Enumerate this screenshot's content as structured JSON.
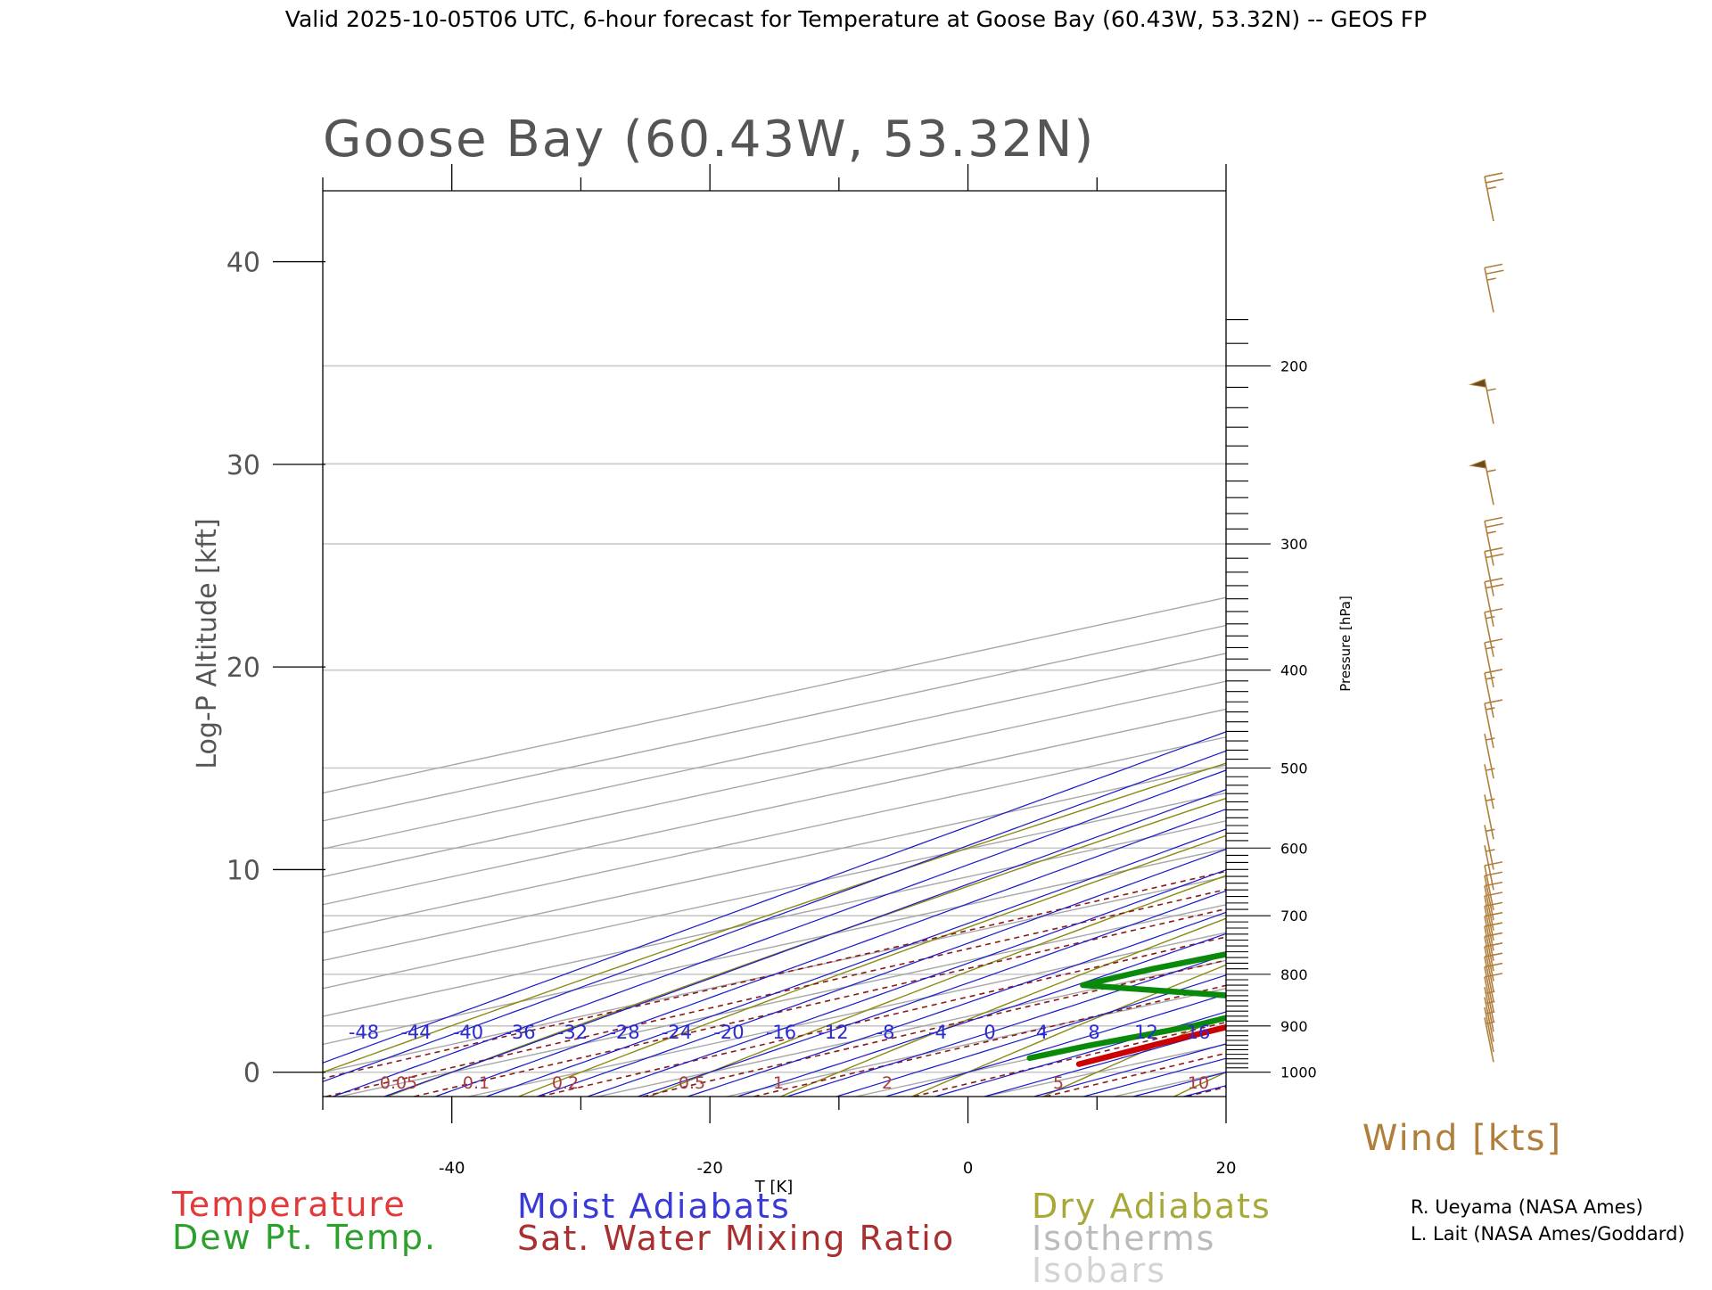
{
  "header": "Valid 2025-10-05T06 UTC, 6-hour forecast for Temperature at Goose Bay (60.43W, 53.32N) -- GEOS FP",
  "chart_data": {
    "type": "line",
    "chart_kind": "skew-T log-P diagram",
    "title": "Goose Bay (60.43W, 53.32N)",
    "xlabel": "T [K]",
    "ylabel": "Log-P Altitude [kft]",
    "y2label": "Pressure [hPa]",
    "xlim": [
      -50,
      20
    ],
    "ylim": [
      -1.2,
      43.5
    ],
    "x_ticks": [
      -40,
      -20,
      0,
      20
    ],
    "y_ticks": [
      0,
      10,
      20,
      30,
      40
    ],
    "pressure_ticks": [
      200,
      300,
      400,
      500,
      600,
      700,
      800,
      900,
      1000
    ],
    "moist_adiabat_labels": [
      "-48",
      "-44",
      "-40",
      "-36",
      "-32",
      "-28",
      "-24",
      "-20",
      "-16",
      "-12",
      "-8",
      "-4",
      "0",
      "4",
      "8",
      "12",
      "16"
    ],
    "mixing_ratio_labels": [
      "0.05",
      "0.1",
      "0.2",
      "0.5",
      "1",
      "2",
      "5",
      "10"
    ],
    "wind_label": "Wind [kts]",
    "grid": true,
    "series": [
      {
        "name": "Temperature",
        "color": "#cc0000",
        "points": [
          [
            5.7,
            0.4
          ],
          [
            4.6,
            1.4
          ],
          [
            3.9,
            2.2
          ],
          [
            4.0,
            3.0
          ],
          [
            5.2,
            3.6
          ],
          [
            8.1,
            4.4
          ],
          [
            9.1,
            6.4
          ],
          [
            9.6,
            8.8
          ],
          [
            9.9,
            10.2
          ],
          [
            9.6,
            11.8
          ],
          [
            9.0,
            12.7
          ],
          [
            7.5,
            14.5
          ],
          [
            6.0,
            16.3
          ],
          [
            4.6,
            17.8
          ],
          [
            3.6,
            18.9
          ],
          [
            2.6,
            20.3
          ],
          [
            1.5,
            21.8
          ],
          [
            0.5,
            23.8
          ],
          [
            -0.6,
            26.0
          ],
          [
            -1.5,
            27.8
          ],
          [
            -1.5,
            30.6
          ],
          [
            -1.5,
            31.6
          ],
          [
            0.6,
            33.7
          ],
          [
            3.5,
            36.1
          ],
          [
            6.5,
            38.6
          ],
          [
            10.6,
            41.7
          ],
          [
            13.1,
            43.3
          ]
        ]
      },
      {
        "name": "Dew Pt. Temp.",
        "color": "#0a8a0a",
        "points": [
          [
            -0.3,
            0.7
          ],
          [
            -0.2,
            1.3
          ],
          [
            0.9,
            2.3
          ],
          [
            0.4,
            2.8
          ],
          [
            -1.2,
            3.3
          ],
          [
            -4.9,
            3.7
          ],
          [
            -22.3,
            4.3
          ],
          [
            -22.7,
            5.1
          ],
          [
            -22.2,
            5.9
          ],
          [
            -20.2,
            6.8
          ],
          [
            -16.6,
            7.4
          ],
          [
            -10.4,
            8.2
          ],
          [
            -8.5,
            9.8
          ],
          [
            -9.1,
            11.5
          ],
          [
            -9.5,
            13.4
          ],
          [
            -9.3,
            14.9
          ],
          [
            -9.2,
            15.9
          ],
          [
            -7.0,
            17.6
          ],
          [
            -5.0,
            18.9
          ],
          [
            -2.3,
            20.2
          ],
          [
            -0.8,
            20.9
          ],
          [
            -1.3,
            22.5
          ],
          [
            -1.7,
            24.2
          ],
          [
            -5.4,
            26.7
          ],
          [
            -7.4,
            27.8
          ],
          [
            -7.6,
            28.7
          ],
          [
            -8.2,
            30.3
          ],
          [
            -8.6,
            31.9
          ],
          [
            -7.7,
            34.7
          ],
          [
            -7.0,
            37.4
          ],
          [
            -6.3,
            40.2
          ],
          [
            -6.3,
            42.4
          ],
          [
            -6.1,
            43.4
          ]
        ]
      }
    ],
    "wind_barbs": [
      {
        "alt_kft": 0.5,
        "speed_kts": 5
      },
      {
        "alt_kft": 1.0,
        "speed_kts": 5
      },
      {
        "alt_kft": 1.5,
        "speed_kts": 5
      },
      {
        "alt_kft": 2.0,
        "speed_kts": 5
      },
      {
        "alt_kft": 2.5,
        "speed_kts": 10
      },
      {
        "alt_kft": 3.0,
        "speed_kts": 10
      },
      {
        "alt_kft": 3.5,
        "speed_kts": 10
      },
      {
        "alt_kft": 4.0,
        "speed_kts": 10
      },
      {
        "alt_kft": 4.5,
        "speed_kts": 10
      },
      {
        "alt_kft": 5.0,
        "speed_kts": 10
      },
      {
        "alt_kft": 5.5,
        "speed_kts": 10
      },
      {
        "alt_kft": 6.0,
        "speed_kts": 10
      },
      {
        "alt_kft": 6.5,
        "speed_kts": 10
      },
      {
        "alt_kft": 7.0,
        "speed_kts": 10
      },
      {
        "alt_kft": 7.5,
        "speed_kts": 10
      },
      {
        "alt_kft": 8.0,
        "speed_kts": 10
      },
      {
        "alt_kft": 9.0,
        "speed_kts": 5
      },
      {
        "alt_kft": 10.0,
        "speed_kts": 5
      },
      {
        "alt_kft": 11.5,
        "speed_kts": 5
      },
      {
        "alt_kft": 13.0,
        "speed_kts": 5
      },
      {
        "alt_kft": 14.5,
        "speed_kts": 5
      },
      {
        "alt_kft": 16.0,
        "speed_kts": 15
      },
      {
        "alt_kft": 17.5,
        "speed_kts": 15
      },
      {
        "alt_kft": 19.0,
        "speed_kts": 15
      },
      {
        "alt_kft": 20.5,
        "speed_kts": 15
      },
      {
        "alt_kft": 22.0,
        "speed_kts": 20
      },
      {
        "alt_kft": 23.5,
        "speed_kts": 20
      },
      {
        "alt_kft": 25.0,
        "speed_kts": 25
      },
      {
        "alt_kft": 28.0,
        "speed_kts": 55
      },
      {
        "alt_kft": 32.0,
        "speed_kts": 55
      },
      {
        "alt_kft": 37.5,
        "speed_kts": 25
      },
      {
        "alt_kft": 42.0,
        "speed_kts": 25
      }
    ]
  },
  "legend": {
    "temperature": "Temperature",
    "dewpoint": "Dew Pt. Temp.",
    "moist": "Moist Adiabats",
    "mixing": "Sat. Water Mixing Ratio",
    "dry": "Dry Adiabats",
    "isotherms": "Isotherms",
    "isobars": "Isobars"
  },
  "credits": {
    "line1": "R. Ueyama (NASA Ames)",
    "line2": "L. Lait (NASA Ames/Goddard)"
  },
  "colors": {
    "temperature": "#cc0000",
    "dewpoint": "#0a8a0a",
    "moist_adiabats": "#1a1acc",
    "mixing_ratio": "#8b1a1a",
    "dry_adiabats": "#8a8a14",
    "isotherms": "#a8a8a8",
    "isobars": "#c8c8c8",
    "wind": "#b07f3c"
  }
}
